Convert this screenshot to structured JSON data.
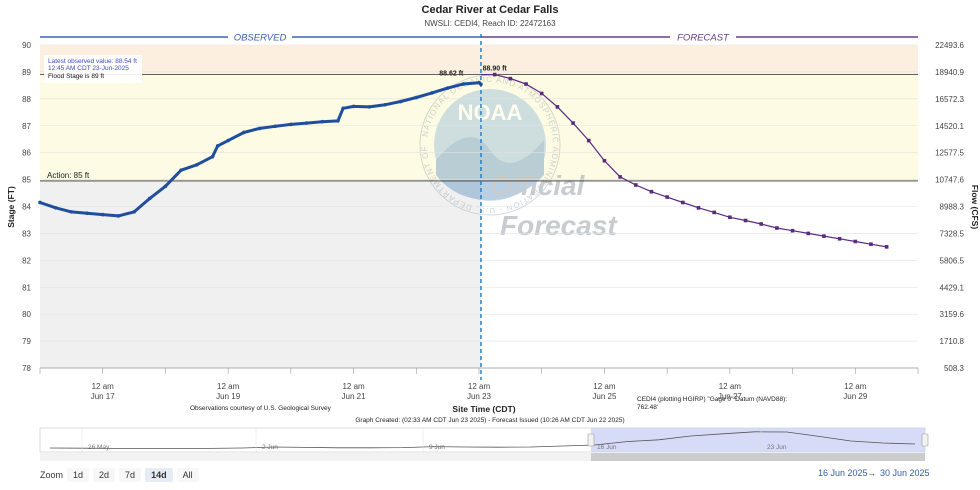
{
  "colors": {
    "observed_line": "#1f4e9e",
    "forecast_line": "#5a2a82",
    "observed_header": "#3a63b8",
    "forecast_header": "#6a3d8f",
    "flood_band": "#fcefe0",
    "moderate_band": "#fdfbe3",
    "observed_shade": "#f0f0f0",
    "divider": "#1f7ac4",
    "navigator_fill": "#c8cff5"
  },
  "watermark": {
    "logo": "NOAA",
    "ring_text": "NATIONAL OCEANIC AND ATMOSPHERIC ADMINISTRATION · U.S. DEPARTMENT OF COMMERCE",
    "official_line1": "Official",
    "official_line2": "Forecast"
  },
  "chart_data": {
    "type": "line",
    "title": "Cedar River at Cedar Falls",
    "subtitle": "NWSLI: CEDI4, Reach ID: 22472163",
    "xlabel": "Site Time (CDT)",
    "ylabel_left": "Stage (FT)",
    "ylabel_right": "Flow (CFS)",
    "section_labels": [
      "OBSERVED",
      "FORECAST"
    ],
    "x_ticks": [
      {
        "x": "Jun 17 00:00",
        "line1": "12 am",
        "line2": "Jun 17"
      },
      {
        "x": "Jun 19 00:00",
        "line1": "12 am",
        "line2": "Jun 19"
      },
      {
        "x": "Jun 21 00:00",
        "line1": "12 am",
        "line2": "Jun 21"
      },
      {
        "x": "Jun 23 00:00",
        "line1": "12 am",
        "line2": "Jun 23"
      },
      {
        "x": "Jun 25 00:00",
        "line1": "12 am",
        "line2": "Jun 25"
      },
      {
        "x": "Jun 27 00:00",
        "line1": "12 am",
        "line2": "Jun 27"
      },
      {
        "x": "Jun 29 00:00",
        "line1": "12 am",
        "line2": "Jun 29"
      }
    ],
    "y_left_ticks": [
      78,
      79,
      80,
      81,
      82,
      83,
      84,
      85,
      86,
      87,
      88,
      89,
      90
    ],
    "y_right_ticks": [
      "508.3",
      "1710.8",
      "3159.6",
      "4429.1",
      "5806.5",
      "7328.5",
      "8988.3",
      "10747.6",
      "12577.5",
      "14520.1",
      "16572.3",
      "18940.9",
      "22493.6"
    ],
    "ylim": [
      78,
      90
    ],
    "xlim": [
      "Jun 16 00:00",
      "Jun 30 00:00"
    ],
    "grid": true,
    "thresholds": [
      {
        "name": "Flood Stage",
        "label": "Flood Stage is 89 ft",
        "value": 88.9
      },
      {
        "name": "Action",
        "label": "Action: 85 ft",
        "value": 84.95
      }
    ],
    "latest_observed": {
      "line1": "Latest observed value: 88.54 ft",
      "line2": "12:45 AM CDT 23-Jun-2025"
    },
    "observed_max_label": "88.62 ft",
    "forecast_max_label": "88.90 ft",
    "forecast_start": "Jun 23 00:45",
    "series": [
      {
        "name": "Observed",
        "x": [
          "Jun 16 00:00",
          "Jun 16 06:00",
          "Jun 16 12:00",
          "Jun 16 18:00",
          "Jun 17 00:00",
          "Jun 17 06:00",
          "Jun 17 12:00",
          "Jun 17 18:00",
          "Jun 18 00:00",
          "Jun 18 06:00",
          "Jun 18 12:00",
          "Jun 18 18:00",
          "Jun 18 20:00",
          "Jun 19 00:00",
          "Jun 19 06:00",
          "Jun 19 12:00",
          "Jun 19 18:00",
          "Jun 20 00:00",
          "Jun 20 06:00",
          "Jun 20 12:00",
          "Jun 20 18:00",
          "Jun 20 20:00",
          "Jun 21 00:00",
          "Jun 21 06:00",
          "Jun 21 12:00",
          "Jun 21 18:00",
          "Jun 22 00:00",
          "Jun 22 06:00",
          "Jun 22 12:00",
          "Jun 22 18:00",
          "Jun 23 00:00",
          "Jun 23 00:45"
        ],
        "values": [
          84.15,
          83.95,
          83.8,
          83.75,
          83.7,
          83.65,
          83.8,
          84.3,
          84.75,
          85.35,
          85.55,
          85.85,
          86.25,
          86.45,
          86.75,
          86.9,
          86.98,
          87.05,
          87.1,
          87.15,
          87.18,
          87.65,
          87.72,
          87.7,
          87.78,
          87.9,
          88.05,
          88.22,
          88.4,
          88.55,
          88.6,
          88.54
        ]
      },
      {
        "name": "Forecast",
        "x": [
          "Jun 23 06:00",
          "Jun 23 12:00",
          "Jun 23 18:00",
          "Jun 24 00:00",
          "Jun 24 06:00",
          "Jun 24 12:00",
          "Jun 24 18:00",
          "Jun 25 00:00",
          "Jun 25 06:00",
          "Jun 25 12:00",
          "Jun 25 18:00",
          "Jun 26 00:00",
          "Jun 26 06:00",
          "Jun 26 12:00",
          "Jun 26 18:00",
          "Jun 27 00:00",
          "Jun 27 06:00",
          "Jun 27 12:00",
          "Jun 27 18:00",
          "Jun 28 00:00",
          "Jun 28 06:00",
          "Jun 28 12:00",
          "Jun 28 18:00",
          "Jun 29 00:00",
          "Jun 29 06:00",
          "Jun 29 12:00"
        ],
        "values": [
          88.9,
          88.75,
          88.55,
          88.2,
          87.7,
          87.1,
          86.45,
          85.7,
          85.1,
          84.8,
          84.55,
          84.35,
          84.15,
          83.95,
          83.78,
          83.6,
          83.48,
          83.35,
          83.2,
          83.1,
          83.0,
          82.9,
          82.8,
          82.7,
          82.6,
          82.5
        ]
      }
    ]
  },
  "footer": {
    "observations_credit": "Observations courtesy of U.S. Geological Survey",
    "graph_created": "Graph Created: (02:33 AM CDT Jun 23 2025) - Forecast Issued (10:26 AM CDT Jun 22 2025)",
    "datum_line1": "CEDI4 (plotting HGIRP) \"Gage 0\" Datum (NAVD88):",
    "datum_line2": "762.48'"
  },
  "navigator": {
    "labels": [
      "26 May",
      "2 Jun",
      "9 Jun",
      "16 Jun",
      "23 Jun"
    ],
    "profile": [
      80.5,
      80.4,
      80.3,
      80.2,
      80.25,
      80.3,
      80.5,
      81.0,
      80.8,
      80.6,
      80.6,
      80.7,
      81.2,
      81.0,
      80.9,
      81.0,
      81.5,
      82.0,
      83.7,
      84.6,
      86.5,
      87.6,
      88.6,
      88.5,
      86.3,
      84.0,
      83.0,
      82.5
    ]
  },
  "zoom": {
    "label": "Zoom",
    "buttons": [
      "1d",
      "2d",
      "7d",
      "14d",
      "All"
    ],
    "active": "14d"
  },
  "date_range": {
    "from": "16 Jun 2025",
    "arrow": "→",
    "to": "30 Jun 2025"
  }
}
